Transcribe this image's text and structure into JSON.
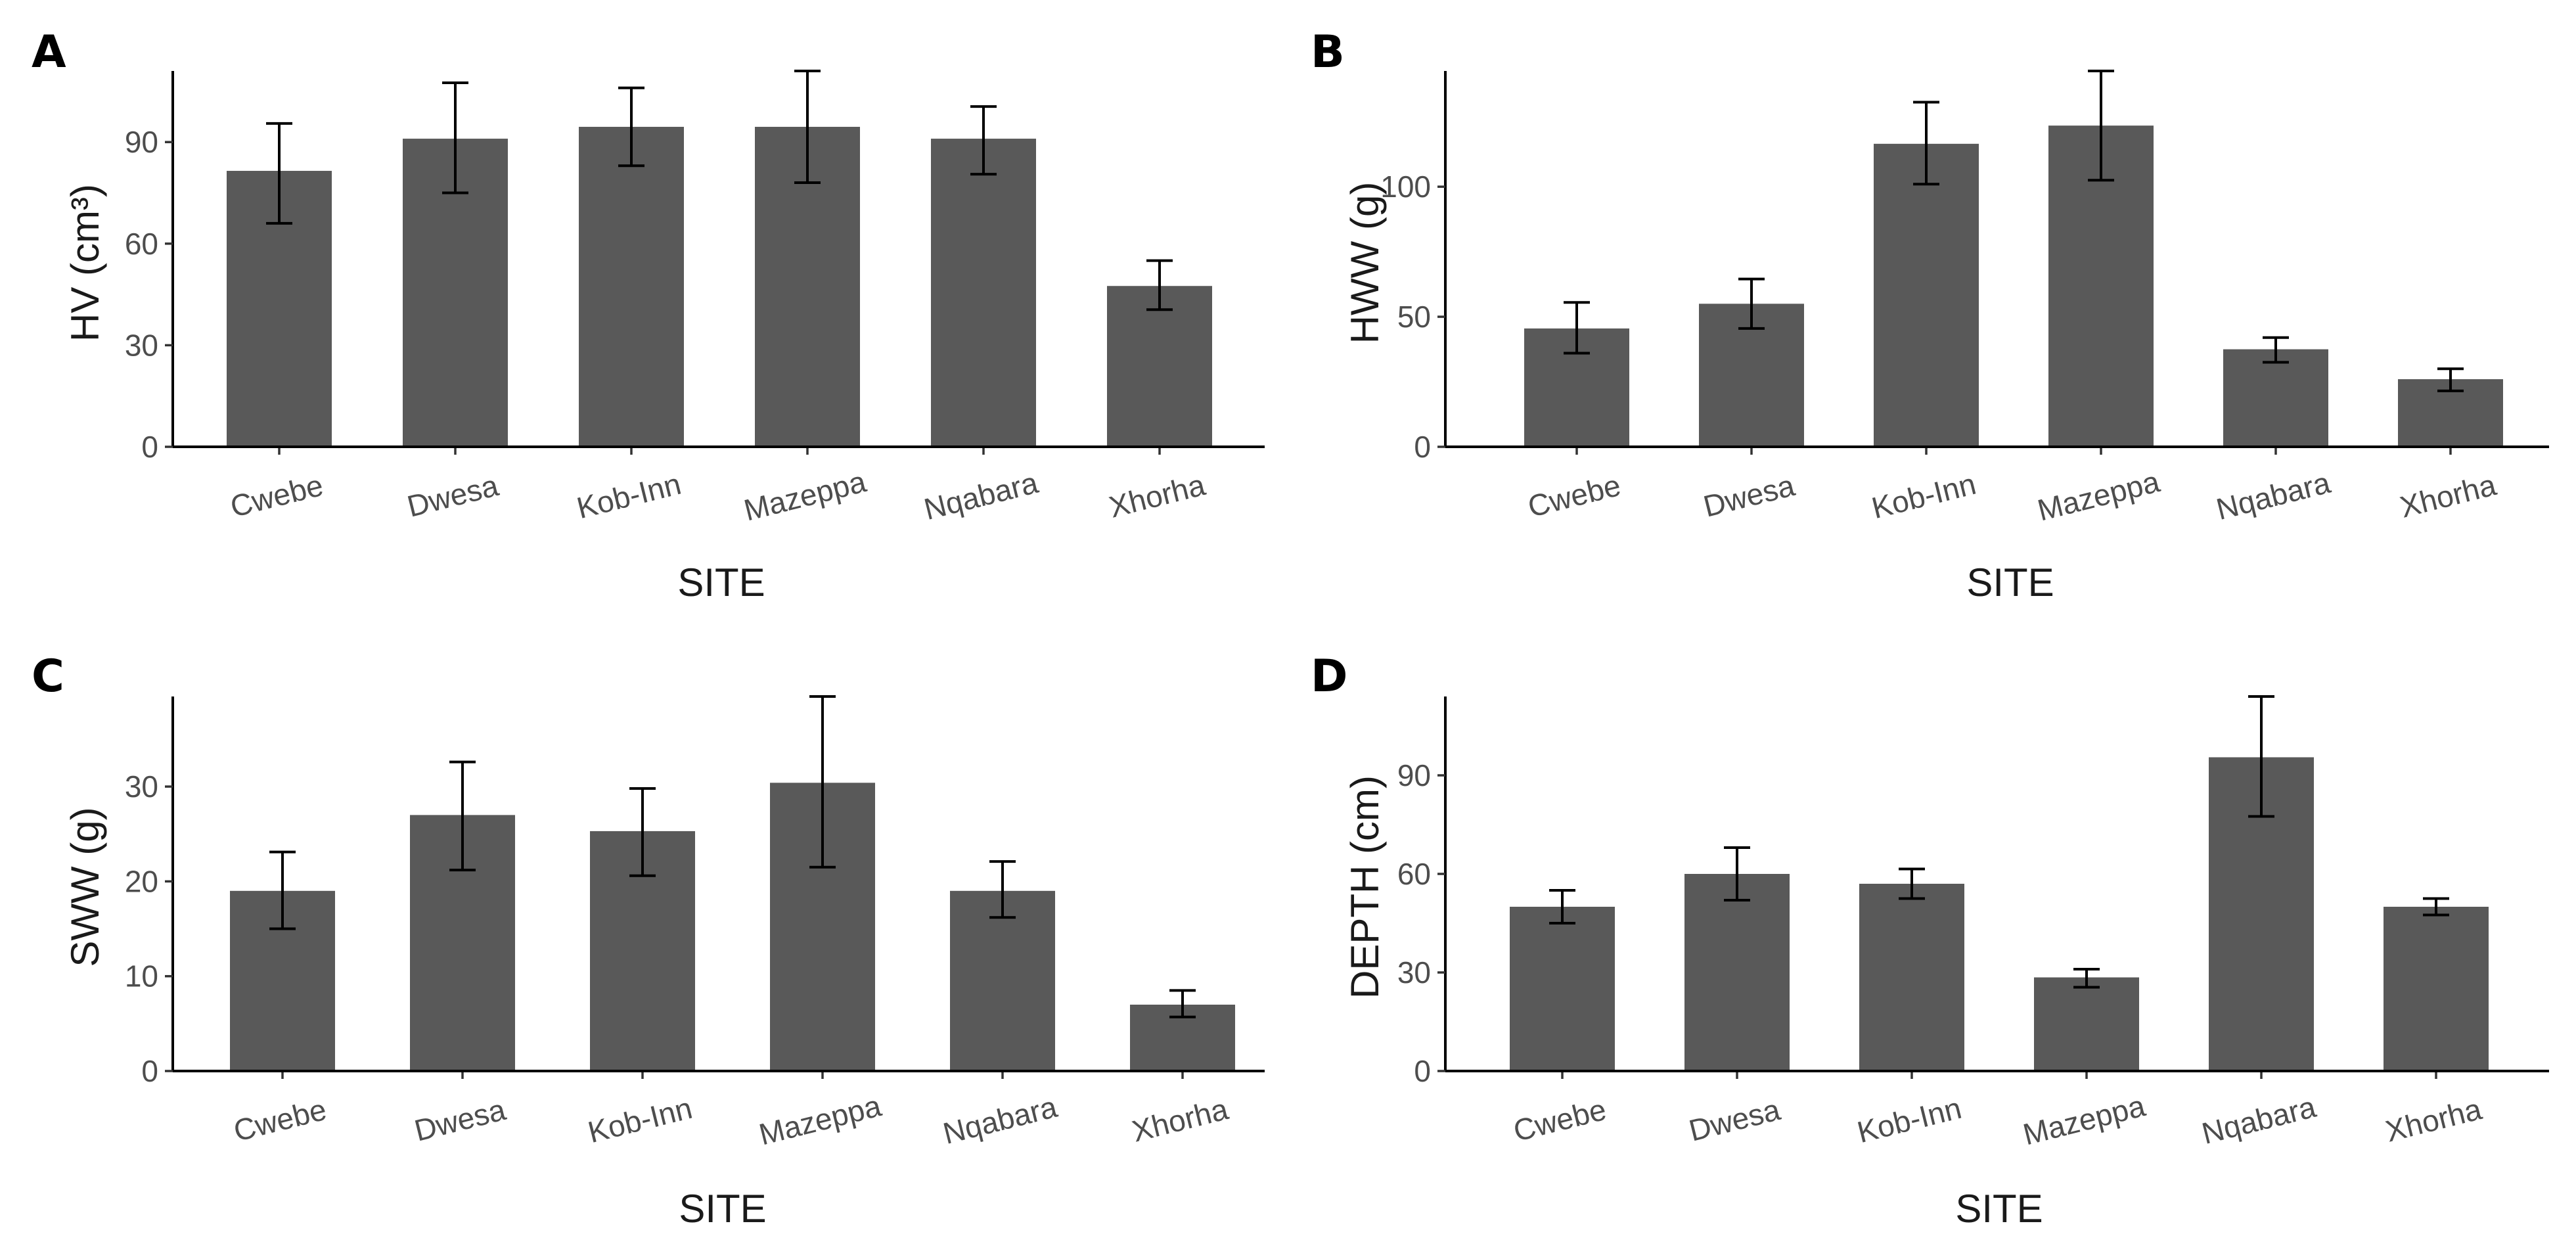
{
  "colors": {
    "bar": "#595959",
    "axis": "#000000",
    "tick_text": "#4d4d4d",
    "background": "#ffffff"
  },
  "chart_data": [
    {
      "panel": "A",
      "type": "bar",
      "xlabel": "SITE",
      "ylabel": "HV (cm³)",
      "categories": [
        "Cwebe",
        "Dwesa",
        "Kob-Inn",
        "Mazeppa",
        "Nqabara",
        "Xhorha"
      ],
      "values": [
        81.5,
        91,
        94.5,
        94.5,
        91,
        47.5
      ],
      "error_low": [
        66,
        75,
        83,
        78,
        80.5,
        40.5
      ],
      "error_high": [
        95.5,
        107.5,
        106,
        111,
        100.5,
        55
      ],
      "yticks": [
        0,
        30,
        60,
        90
      ],
      "ylim": [
        0,
        111
      ],
      "grid": false
    },
    {
      "panel": "B",
      "type": "bar",
      "xlabel": "SITE",
      "ylabel": "HWW (g)",
      "categories": [
        "Cwebe",
        "Dwesa",
        "Kob-Inn",
        "Mazeppa",
        "Nqabara",
        "Xhorha"
      ],
      "values": [
        45.5,
        55,
        116.5,
        123.5,
        37.5,
        26
      ],
      "error_low": [
        36,
        45.5,
        101,
        102.5,
        32.5,
        21.5
      ],
      "error_high": [
        55.5,
        64.5,
        132.5,
        144.5,
        42,
        30
      ],
      "yticks": [
        0,
        50,
        100
      ],
      "ylim": [
        0,
        144.5
      ],
      "grid": false
    },
    {
      "panel": "C",
      "type": "bar",
      "xlabel": "SITE",
      "ylabel": "SWW (g)",
      "categories": [
        "Cwebe",
        "Dwesa",
        "Kob-Inn",
        "Mazeppa",
        "Nqabara",
        "Xhorha"
      ],
      "values": [
        19,
        27,
        25.3,
        30.4,
        19,
        7
      ],
      "error_low": [
        15,
        21.2,
        20.6,
        21.5,
        16.2,
        5.7
      ],
      "error_high": [
        23.1,
        32.6,
        29.8,
        39.5,
        22.1,
        8.5
      ],
      "yticks": [
        0,
        10,
        20,
        30
      ],
      "ylim": [
        0,
        39.5
      ],
      "grid": false
    },
    {
      "panel": "D",
      "type": "bar",
      "xlabel": "SITE",
      "ylabel": "DEPTH (cm)",
      "categories": [
        "Cwebe",
        "Dwesa",
        "Kob-Inn",
        "Mazeppa",
        "Nqabara",
        "Xhorha"
      ],
      "values": [
        50,
        60,
        57,
        28.5,
        95.5,
        50
      ],
      "error_low": [
        45,
        52,
        52.5,
        25.5,
        77.5,
        47.5
      ],
      "error_high": [
        55,
        68,
        61.5,
        31,
        114,
        52.5
      ],
      "yticks": [
        0,
        30,
        60,
        90
      ],
      "ylim": [
        0,
        114
      ],
      "grid": false
    }
  ]
}
